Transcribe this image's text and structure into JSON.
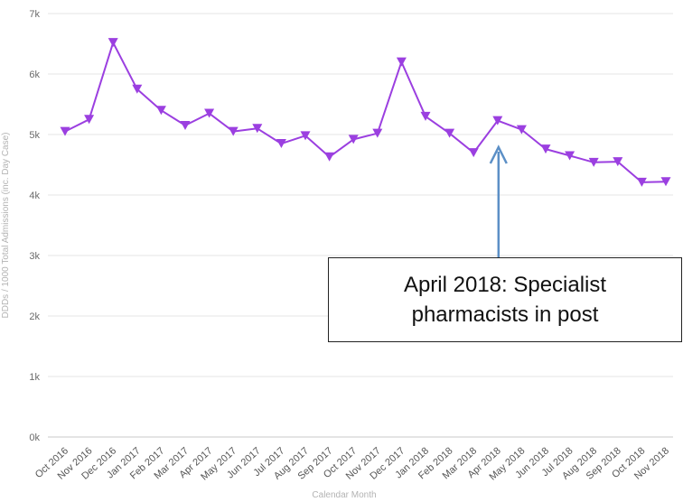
{
  "chart_data": {
    "type": "line",
    "title": "",
    "xlabel": "Calendar Month",
    "ylabel": "DDDs / 1000 Total Admissions (inc. Day Case)",
    "ylim": [
      0,
      7000
    ],
    "y_ticks": [
      "0k",
      "1k",
      "2k",
      "3k",
      "4k",
      "5k",
      "6k",
      "7k"
    ],
    "grid": true,
    "categories": [
      "Oct 2016",
      "Nov 2016",
      "Dec 2016",
      "Jan 2017",
      "Feb 2017",
      "Mar 2017",
      "Apr 2017",
      "May 2017",
      "Jun 2017",
      "Jul 2017",
      "Aug 2017",
      "Sep 2017",
      "Oct 2017",
      "Nov 2017",
      "Dec 2017",
      "Jan 2018",
      "Feb 2018",
      "Mar 2018",
      "Apr 2018",
      "May 2018",
      "Jun 2018",
      "Jul 2018",
      "Aug 2018",
      "Sep 2018",
      "Oct 2018",
      "Nov 2018"
    ],
    "series": [
      {
        "values": [
          5050,
          5250,
          6520,
          5750,
          5400,
          5150,
          5350,
          5050,
          5100,
          4850,
          4980,
          4630,
          4920,
          5020,
          6200,
          5300,
          5020,
          4700,
          5230,
          5080,
          4760,
          4650,
          4540,
          4550,
          4210,
          4220
        ],
        "color": "#9b3fe0",
        "marker": "triangle-down"
      }
    ],
    "annotation": {
      "text": "April 2018: Specialist\npharmacists in post",
      "target_category": "Apr 2018",
      "arrow_color": "#5b8fc6"
    }
  }
}
